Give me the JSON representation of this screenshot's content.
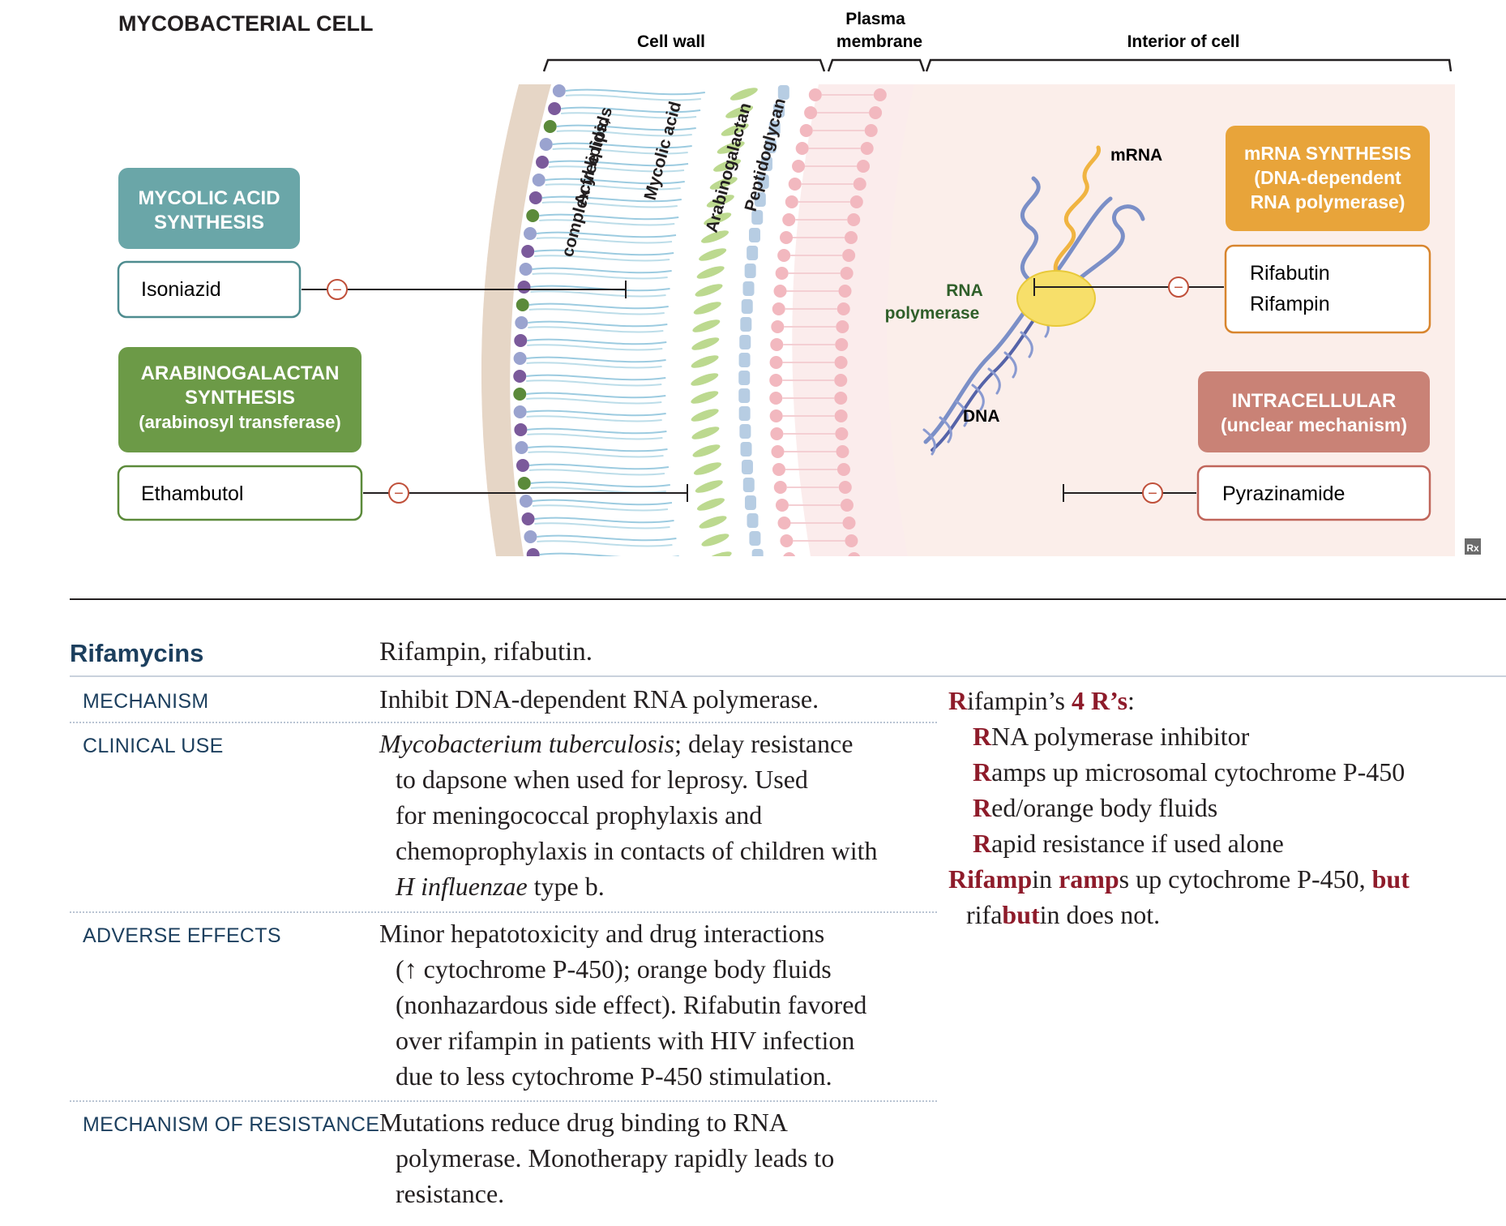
{
  "figure": {
    "title": "MYCOBACTERIAL CELL",
    "regions": {
      "cell_wall": "Cell wall",
      "plasma_membrane_line1": "Plasma",
      "plasma_membrane_line2": "membrane",
      "interior": "Interior of cell"
    },
    "layer_labels": {
      "acyl_line1": "Acyl lipids,",
      "acyl_line2": "complex free lipids",
      "mycolic": "Mycolic acid",
      "arabinogalactan": "Arabinogalactan",
      "peptidoglycan": "Peptidoglycan"
    },
    "molecule_labels": {
      "mrna": "mRNA",
      "rna_pol_line1": "RNA",
      "rna_pol_line2": "polymerase",
      "dna": "DNA"
    },
    "targets": {
      "mycolic_line1": "MYCOLIC  ACID",
      "mycolic_line2": "SYNTHESIS",
      "arabino_line1": "ARABINOGALACTAN",
      "arabino_line2": "SYNTHESIS",
      "arabino_line3": "(arabinosyl transferase)",
      "mrna_line1": "mRNA SYNTHESIS",
      "mrna_line2": "(DNA-dependent",
      "mrna_line3": "RNA polymerase)",
      "intra_line1": "INTRACELLULAR",
      "intra_line2": "(unclear mechanism)"
    },
    "drugs": {
      "isoniazid": "Isoniazid",
      "ethambutol": "Ethambutol",
      "rifabutin": "Rifabutin",
      "rifampin": "Rifampin",
      "pyrazinamide": "Pyrazinamide"
    },
    "inhibit_symbol": "−",
    "rx_mark": "Rx",
    "colors": {
      "mycolic_box": "#6aa6a8",
      "arabino_box": "#6c9a47",
      "mrna_box": "#e8a43a",
      "intra_box": "#c98276",
      "inhibit_line": "#c0503a"
    }
  },
  "table": {
    "drug_class": "Rifamycins",
    "drugs": "Rifampin, rifabutin.",
    "mechanism": {
      "label": "MECHANISM",
      "line1": "Inhibit DNA-dependent RNA polymerase."
    },
    "clinical_use": {
      "label": "CLINICAL USE",
      "line1_italic": "Mycobacterium tuberculosis",
      "line1_rest": "; delay resistance",
      "line2": "to dapsone when used for leprosy. Used",
      "line3": "for meningococcal prophylaxis and",
      "line4": "chemoprophylaxis in contacts of children with",
      "line5_italic": "H influenzae",
      "line5_rest": " type b."
    },
    "adverse_effects": {
      "label": "ADVERSE EFFECTS",
      "line1": "Minor hepatotoxicity and drug interactions",
      "line2": "(↑ cytochrome P-450); orange body fluids",
      "line3": "(nonhazardous side effect). Rifabutin favored",
      "line4": "over rifampin in patients with HIV infection",
      "line5": "due to less cytochrome P-450 stimulation."
    },
    "resistance": {
      "label": "MECHANISM OF RESISTANCE",
      "line1": "Mutations reduce drug binding to RNA",
      "line2": "polymerase. Monotherapy rapidly leads to",
      "line3": "resistance."
    },
    "mnemonic": {
      "l1_r": "R",
      "l1_a": "ifampin’s ",
      "l1_b": "4 R’s",
      "l1_c": ":",
      "l2_r": "R",
      "l2_rest": "NA polymerase inhibitor",
      "l3_r": "R",
      "l3_rest": "amps up microsomal cytochrome P-450",
      "l4_r": "R",
      "l4_rest": "ed/orange body fluids",
      "l5_r": "R",
      "l5_rest": "apid resistance if used alone",
      "l6_a": "Rifamp",
      "l6_b": "in ",
      "l6_c": "ramp",
      "l6_d": "s up cytochrome P-450, ",
      "l6_e": "but",
      "l7_a": "rifa",
      "l7_b": "but",
      "l7_c": "in does not."
    }
  }
}
